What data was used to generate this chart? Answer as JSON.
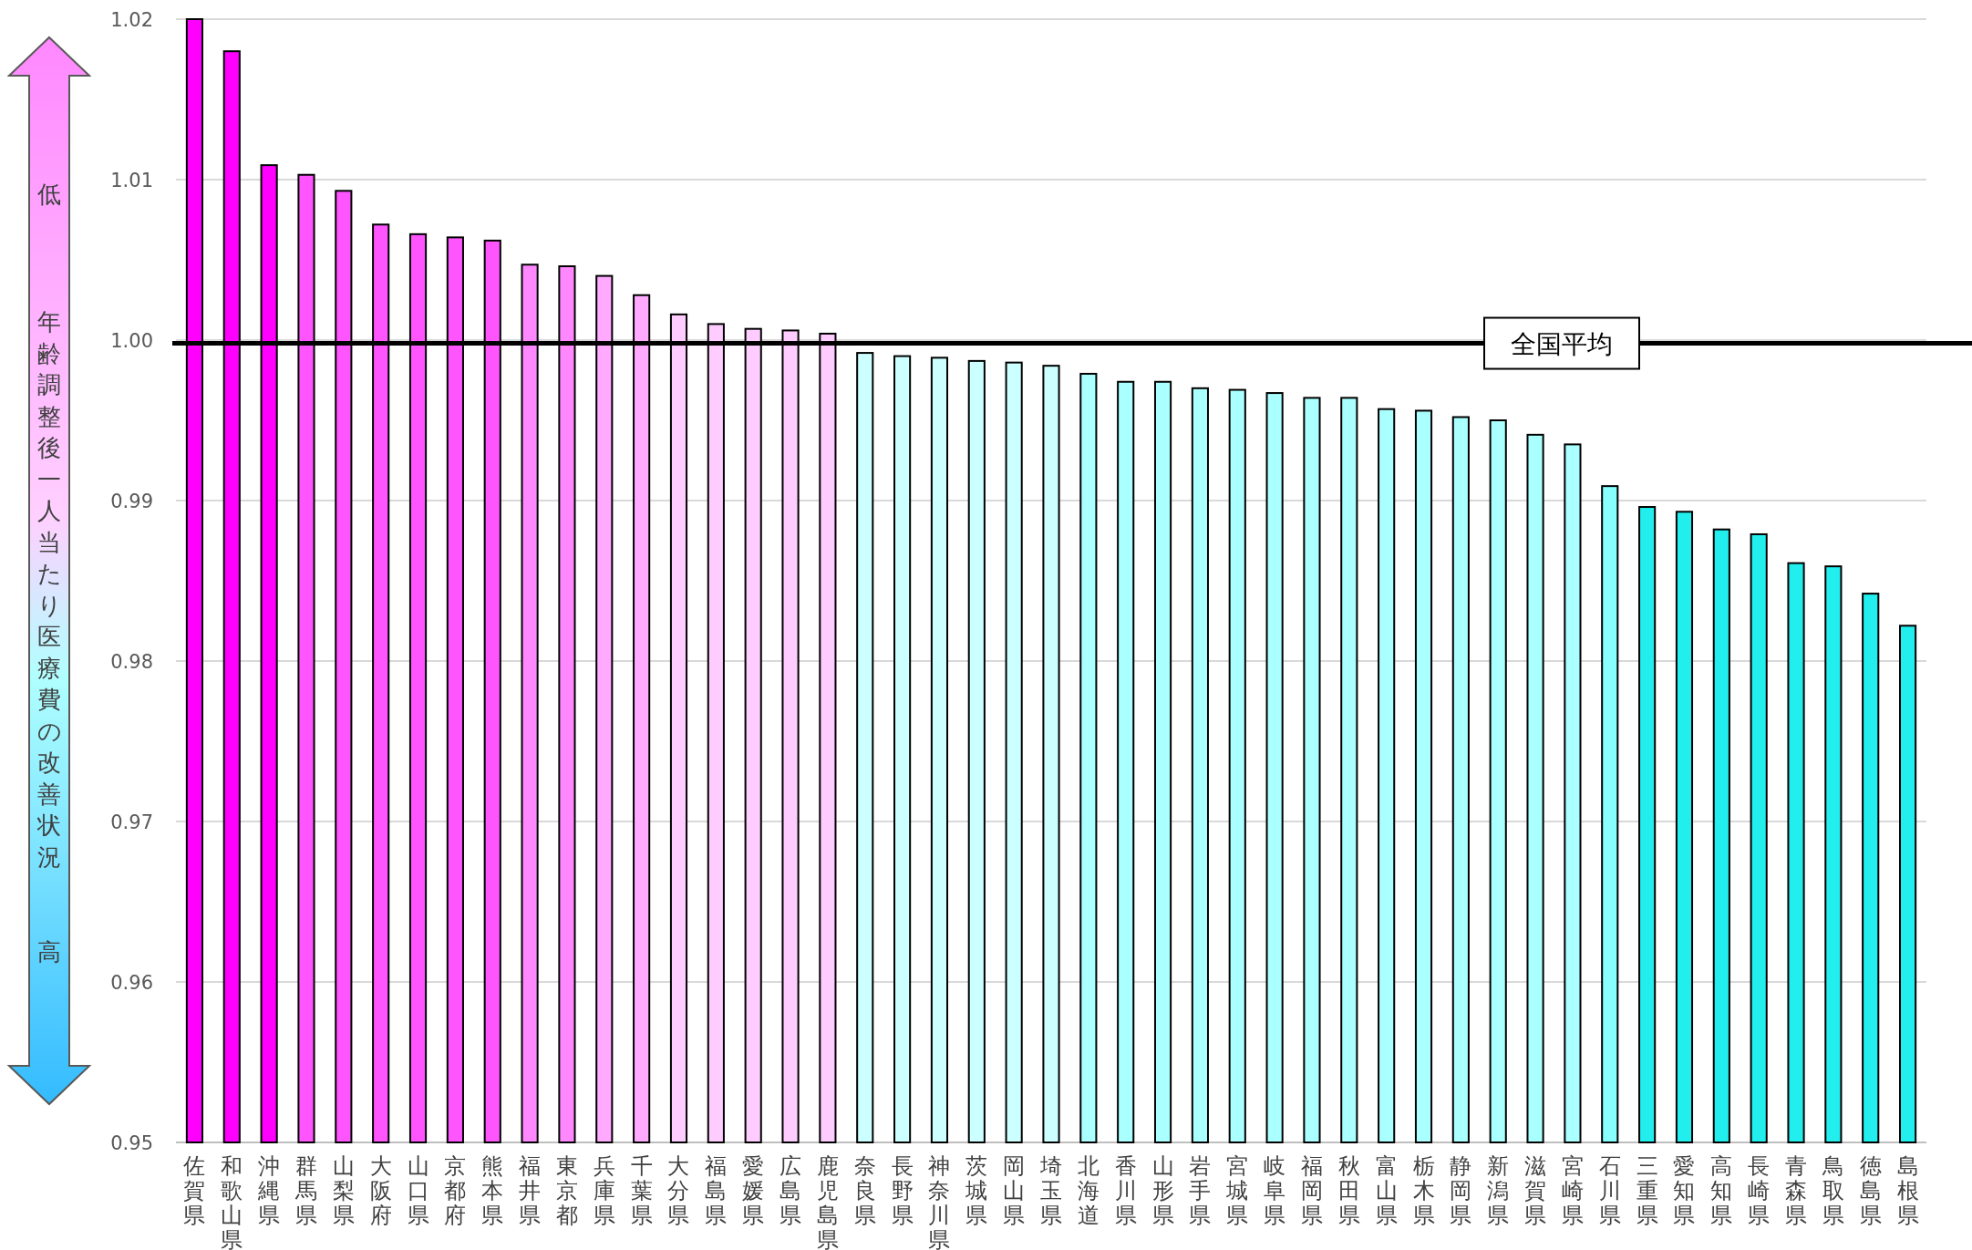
{
  "chart_data": {
    "type": "bar",
    "ylabel": "年齢調整後一人当たり医療費の改善状況",
    "annotations": [
      "低",
      "高"
    ],
    "categories": [
      "佐賀県",
      "和歌山県",
      "沖縄県",
      "群馬県",
      "山梨県",
      "大阪府",
      "山口県",
      "京都府",
      "熊本県",
      "福井県",
      "東京都",
      "兵庫県",
      "千葉県",
      "大分県",
      "福島県",
      "愛媛県",
      "広島県",
      "鹿児島県",
      "奈良県",
      "長野県",
      "神奈川県",
      "茨城県",
      "岡山県",
      "埼玉県",
      "北海道",
      "香川県",
      "山形県",
      "岩手県",
      "宮城県",
      "岐阜県",
      "福岡県",
      "秋田県",
      "富山県",
      "栃木県",
      "静岡県",
      "新潟県",
      "滋賀県",
      "宮崎県",
      "石川県",
      "三重県",
      "愛知県",
      "高知県",
      "長崎県",
      "青森県",
      "鳥取県",
      "徳島県",
      "島根県"
    ],
    "values": [
      1.02,
      1.018,
      1.0109,
      1.0103,
      1.0093,
      1.0072,
      1.0066,
      1.0064,
      1.0062,
      1.0047,
      1.0046,
      1.004,
      1.0028,
      1.0016,
      1.001,
      1.0007,
      1.0006,
      1.0004,
      0.9992,
      0.999,
      0.9989,
      0.9987,
      0.9986,
      0.9984,
      0.9979,
      0.9974,
      0.9974,
      0.997,
      0.9969,
      0.9967,
      0.9964,
      0.9964,
      0.9957,
      0.9956,
      0.9952,
      0.995,
      0.9941,
      0.9935,
      0.9909,
      0.9896,
      0.9893,
      0.9882,
      0.9879,
      0.9861,
      0.9859,
      0.9842,
      0.9822
    ],
    "colors": [
      "#ff00ff",
      "#ff00ff",
      "#ff00ff",
      "#ff55ff",
      "#ff55ff",
      "#ff55ff",
      "#ff55ff",
      "#ff55ff",
      "#ff55ff",
      "#ff88ff",
      "#ff88ff",
      "#ffaaff",
      "#ffaaff",
      "#ffccff",
      "#ffccff",
      "#ffccff",
      "#ffccff",
      "#ffccff",
      "#ccffff",
      "#ccffff",
      "#ccffff",
      "#ccffff",
      "#ccffff",
      "#ccffff",
      "#aaffff",
      "#aaffff",
      "#aaffff",
      "#aaffff",
      "#aaffff",
      "#aaffff",
      "#aaffff",
      "#aaffff",
      "#aaffff",
      "#aaffff",
      "#aaffff",
      "#aaffff",
      "#aaffff",
      "#aaffff",
      "#88ffff",
      "#22eeee",
      "#22eeee",
      "#22eeee",
      "#22eeee",
      "#22eeee",
      "#22eeee",
      "#22eeee",
      "#22eeee"
    ],
    "ylim": [
      0.95,
      1.02
    ],
    "yticks": [
      0.95,
      0.96,
      0.97,
      0.98,
      0.99,
      {
        "value": 1,
        "label": "1.00"
      },
      1.01,
      1.02
    ],
    "grid": "y",
    "ref_lines": [
      {
        "axis": "y",
        "value": 0.9998,
        "label": "全国平均",
        "color": "#000000"
      }
    ]
  }
}
